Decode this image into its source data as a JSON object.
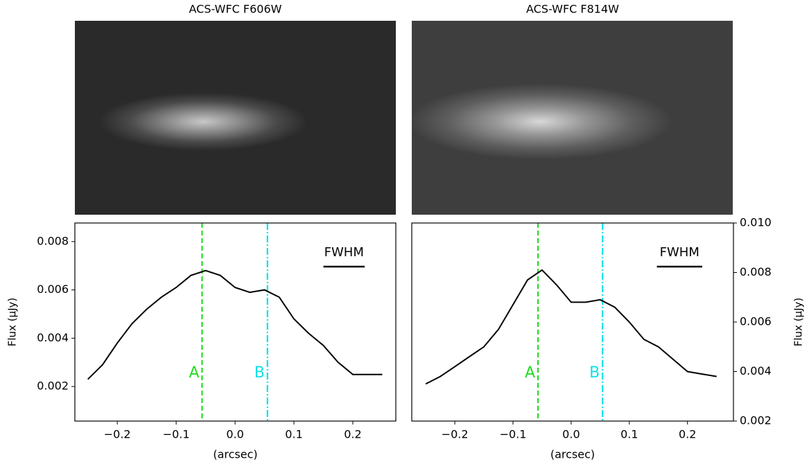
{
  "chart_data": [
    {
      "type": "line",
      "title": "ACS-WFC F606W",
      "xlabel": "(arcsec)",
      "ylabel": "Flux (μJy)",
      "y_axis_position": "left",
      "xlim": [
        -0.272,
        0.273
      ],
      "ylim": [
        0.00057,
        0.00877
      ],
      "xticks": [
        {
          "value": -0.2,
          "label": "−0.2"
        },
        {
          "value": -0.1,
          "label": "−0.1"
        },
        {
          "value": 0,
          "label": "0.0"
        },
        0.1,
        0.2
      ],
      "yticks": [
        0.002,
        0.004,
        0.006,
        0.008
      ],
      "x": [
        -0.25,
        -0.225,
        -0.2,
        -0.175,
        -0.15,
        -0.125,
        -0.1,
        -0.075,
        -0.05,
        -0.025,
        0,
        0.025,
        0.05,
        0.075,
        0.1,
        0.125,
        0.15,
        0.175,
        0.2,
        0.225,
        0.25
      ],
      "series": [
        {
          "color": "#000000",
          "values": [
            0.0023,
            0.0029,
            0.0038,
            0.0046,
            0.0052,
            0.0057,
            0.0061,
            0.0066,
            0.0068,
            0.0066,
            0.0061,
            0.0059,
            0.006,
            0.0057,
            0.0048,
            0.0042,
            0.0037,
            0.003,
            0.0025,
            0.0025,
            0.0025
          ]
        }
      ],
      "vlines": [
        {
          "label": "A",
          "x": -0.056,
          "color": "#22dd22",
          "style": "dashed"
        },
        {
          "label": "B",
          "x": 0.055,
          "color": "#11e0e8",
          "style": "dashdot"
        }
      ],
      "fwhm": {
        "label": "FWHM",
        "width": 0.07
      }
    },
    {
      "type": "line",
      "title": "ACS-WFC F814W",
      "xlabel": "(arcsec)",
      "ylabel": "Flux (μJy)",
      "y_axis_position": "right",
      "xlim": [
        -0.274,
        0.279
      ],
      "ylim": [
        0.002,
        0.01
      ],
      "xticks": [
        {
          "value": -0.2,
          "label": "−0.2"
        },
        {
          "value": -0.1,
          "label": "−0.1"
        },
        {
          "value": 0,
          "label": "0.0"
        },
        0.1,
        0.2
      ],
      "yticks": [
        0.002,
        0.004,
        0.006,
        0.008,
        {
          "value": 0.01,
          "label": "0.010"
        }
      ],
      "x": [
        -0.25,
        -0.225,
        -0.2,
        -0.175,
        -0.15,
        -0.125,
        -0.1,
        -0.075,
        -0.05,
        -0.025,
        0,
        0.025,
        0.05,
        0.075,
        0.1,
        0.125,
        0.15,
        0.175,
        0.2,
        0.225,
        0.25
      ],
      "series": [
        {
          "color": "#000000",
          "values": [
            0.0035,
            0.0038,
            0.0042,
            0.0046,
            0.005,
            0.0057,
            0.0067,
            0.0077,
            0.0081,
            0.0075,
            0.0068,
            0.0068,
            0.0069,
            0.0066,
            0.006,
            0.0053,
            0.005,
            0.0045,
            0.004,
            0.0039,
            0.0038
          ]
        }
      ],
      "vlines": [
        {
          "label": "A",
          "x": -0.057,
          "color": "#22dd22",
          "style": "dashed"
        },
        {
          "label": "B",
          "x": 0.054,
          "color": "#11e0e8",
          "style": "dashdot"
        }
      ],
      "fwhm": {
        "label": "FWHM",
        "width": 0.078
      }
    }
  ]
}
